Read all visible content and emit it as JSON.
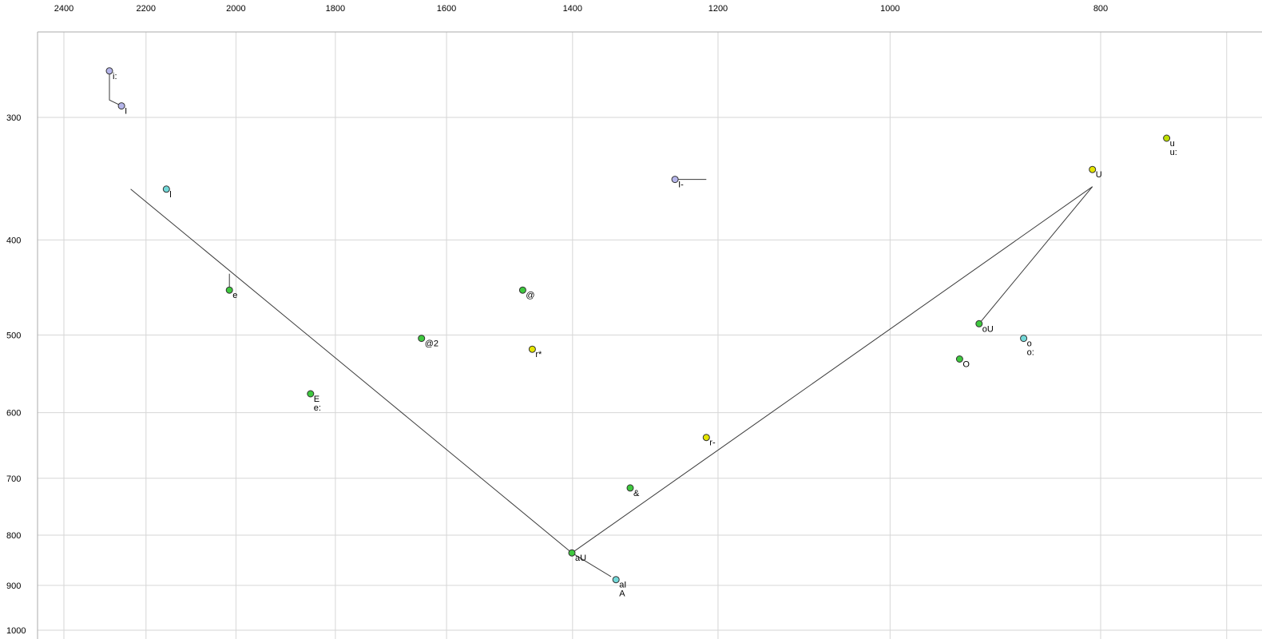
{
  "chart_data": {
    "type": "scatter",
    "title": "",
    "x_axis": {
      "position": "top",
      "scale": "log",
      "reversed": true,
      "ticks": [
        2400,
        2200,
        2000,
        1800,
        1600,
        1400,
        1200,
        1000,
        800
      ],
      "extra_gridlines": [
        700
      ],
      "range": [
        2470,
        690
      ]
    },
    "y_axis": {
      "position": "left",
      "scale": "log",
      "reversed": true,
      "ticks": [
        300,
        400,
        500,
        600,
        700,
        800,
        900,
        1000
      ],
      "range": [
        250,
        1020
      ]
    },
    "palette": {
      "lavender": "#b5b5ea",
      "green": "#3ec83e",
      "yellow": "#e4e400",
      "yellow_green": "#bede00",
      "cyan": "#72d8d8"
    },
    "colors": {
      "grid": "#d6d6d6",
      "frame": "#ababab",
      "line": "#3a3a3a",
      "point_stroke": "#333333",
      "text": "#000000",
      "background": "#ffffff"
    },
    "points": [
      {
        "labels": [
          "i:"
        ],
        "f2": 2287,
        "f1": 269,
        "color": "lavender"
      },
      {
        "labels": [
          "I"
        ],
        "f2": 2258,
        "f1": 292,
        "color": "lavender"
      },
      {
        "labels": [
          "l"
        ],
        "f2": 2153,
        "f1": 355,
        "color": "cyan"
      },
      {
        "labels": [
          "e"
        ],
        "f2": 2014,
        "f1": 450,
        "color": "green"
      },
      {
        "labels": [
          "E",
          "e:"
        ],
        "f2": 1848,
        "f1": 574,
        "color": "green"
      },
      {
        "labels": [
          "@2"
        ],
        "f2": 1643,
        "f1": 504,
        "color": "green"
      },
      {
        "labels": [
          "@"
        ],
        "f2": 1476,
        "f1": 450,
        "color": "green"
      },
      {
        "labels": [
          "r*"
        ],
        "f2": 1461,
        "f1": 517,
        "color": "yellow"
      },
      {
        "labels": [
          "aU"
        ],
        "f2": 1401,
        "f1": 834,
        "color": "green"
      },
      {
        "labels": [
          "aI",
          "A"
        ],
        "f2": 1337,
        "f1": 888,
        "color": "cyan"
      },
      {
        "labels": [
          "&"
        ],
        "f2": 1317,
        "f1": 716,
        "color": "green"
      },
      {
        "labels": [
          "r-"
        ],
        "f2": 1215,
        "f1": 636,
        "color": "yellow"
      },
      {
        "labels": [
          "I-"
        ],
        "f2": 1256,
        "f1": 347,
        "color": "lavender"
      },
      {
        "labels": [
          "O"
        ],
        "f2": 929,
        "f1": 529,
        "color": "green"
      },
      {
        "labels": [
          "oU"
        ],
        "f2": 910,
        "f1": 487,
        "color": "green"
      },
      {
        "labels": [
          "o",
          "o:"
        ],
        "f2": 868,
        "f1": 504,
        "color": "cyan"
      },
      {
        "labels": [
          "U"
        ],
        "f2": 807,
        "f1": 339,
        "color": "yellow"
      },
      {
        "labels": [
          "u",
          "u:"
        ],
        "f2": 746,
        "f1": 315,
        "color": "yellow_green"
      }
    ],
    "lines": [
      {
        "name": "i-length-connector",
        "points": [
          [
            2287,
            269
          ],
          [
            2287,
            288
          ],
          [
            2258,
            292
          ]
        ]
      },
      {
        "name": "front-edge",
        "points": [
          [
            2236,
            355
          ],
          [
            1401,
            834
          ]
        ]
      },
      {
        "name": "back-edge",
        "points": [
          [
            1401,
            834
          ],
          [
            807,
            353
          ]
        ]
      },
      {
        "name": "u-ou-edge",
        "points": [
          [
            807,
            353
          ],
          [
            910,
            487
          ]
        ]
      },
      {
        "name": "i-bar-whisker",
        "points": [
          [
            1256,
            347
          ],
          [
            1215,
            347
          ]
        ]
      },
      {
        "name": "au-ai-connector",
        "points": [
          [
            1401,
            834
          ],
          [
            1344,
            882
          ]
        ]
      },
      {
        "name": "e-whisker",
        "points": [
          [
            2014,
            433
          ],
          [
            2014,
            450
          ]
        ]
      }
    ]
  }
}
